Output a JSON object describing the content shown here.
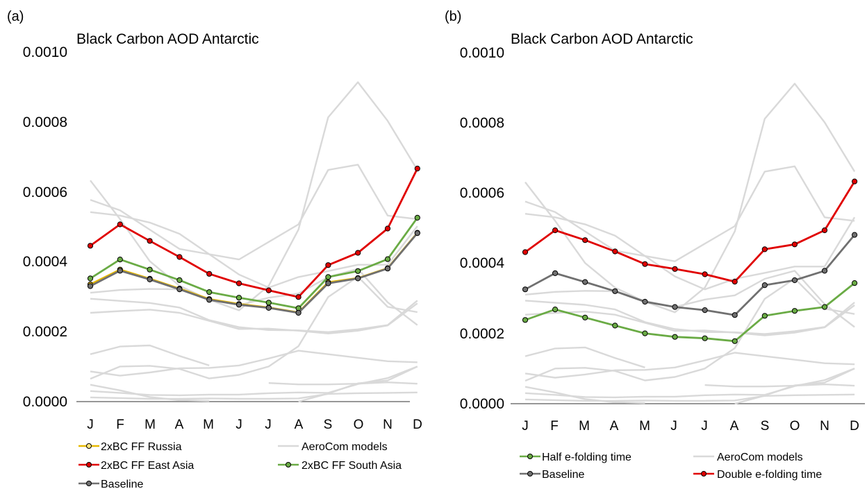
{
  "chart_data": [
    {
      "panel_label": "(a)",
      "type": "line",
      "title": "Black Carbon AOD Antarctic",
      "xlabel": "",
      "ylabel": "",
      "categories": [
        "J",
        "F",
        "M",
        "A",
        "M",
        "J",
        "J",
        "A",
        "S",
        "O",
        "N",
        "D"
      ],
      "ylim": [
        0,
        0.001
      ],
      "yticks": [
        "0.0000",
        "0.0002",
        "0.0004",
        "0.0006",
        "0.0008",
        "0.0010"
      ],
      "grid": false,
      "legend": "bottom",
      "legend_label": "AeroCom models",
      "background_color": "#d9d9d9",
      "background_series": [
        [
          0.00063,
          0.00052,
          0.0004,
          0.00033,
          0.00029,
          0.00026,
          0.00033,
          0.00049,
          0.00081,
          0.00091,
          0.0008,
          0.00066
        ],
        [
          0.000575,
          0.000545,
          0.00049,
          0.000435,
          0.00042,
          0.000405,
          0.000455,
          0.000505,
          0.00066,
          0.000675,
          0.00053,
          0.00052
        ],
        [
          0.00054,
          0.00053,
          0.00051,
          0.000478,
          0.00042,
          0.000362,
          0.000325,
          0.000355,
          0.000372,
          0.00039,
          0.00039,
          0.0005
        ],
        [
          0.00031,
          0.000318,
          0.000321,
          0.00032,
          0.000292,
          0.000275,
          0.000296,
          0.000308,
          0.000355,
          0.000378,
          0.000283,
          0.000218
        ],
        [
          0.000293,
          0.000287,
          0.000281,
          0.000268,
          0.000232,
          0.000212,
          0.000204,
          0.000203,
          0.000198,
          0.000206,
          0.000218,
          0.000288
        ],
        [
          0.000253,
          0.000258,
          0.000262,
          0.000253,
          0.00023,
          0.000207,
          0.000208,
          0.000202,
          0.000194,
          0.000202,
          0.000217,
          0.00028
        ],
        [
          0.000135,
          0.000157,
          0.00016,
          0.00013,
          0.000103,
          null,
          null,
          null,
          null,
          null,
          null,
          null
        ],
        [
          8.6e-05,
          7.4e-05,
          8.3e-05,
          9.5e-05,
          9.6e-05,
          0.000103,
          0.000123,
          0.000145,
          0.000135,
          0.000125,
          0.000115,
          0.000112
        ],
        [
          6.5e-05,
          0.0001,
          0.000102,
          9.3e-05,
          6.6e-05,
          7.6e-05,
          0.0001,
          0.000158,
          0.000298,
          0.000356,
          0.00027,
          0.000255
        ],
        [
          4.8e-05,
          3.2e-05,
          1.3e-05,
          4e-06,
          2e-06,
          null,
          null,
          null,
          null,
          null,
          null,
          null
        ],
        [
          3e-05,
          2.5e-05,
          1.9e-05,
          1.8e-05,
          2e-05,
          2e-05,
          2.4e-05,
          2.6e-05,
          2.5e-05,
          5e-05,
          6.7e-05,
          0.0001
        ],
        [
          1.2e-05,
          1e-05,
          8e-06,
          8e-06,
          9e-06,
          8e-06,
          8e-06,
          9e-06,
          2.2e-05,
          2.4e-05,
          2.5e-05,
          2.6e-05
        ],
        [
          null,
          null,
          null,
          null,
          null,
          null,
          5.3e-05,
          4.9e-05,
          4.9e-05,
          5.1e-05,
          5.5e-05,
          5.1e-05
        ],
        [
          null,
          null,
          null,
          null,
          null,
          null,
          null,
          0.0,
          2.3e-05,
          5.2e-05,
          6e-05,
          0.0001
        ]
      ],
      "series": [
        {
          "name": "2xBC FF Russia",
          "color": "#e6b800",
          "values": [
            0.000334,
            0.000376,
            0.00035,
            0.000322,
            0.000292,
            0.000278,
            0.000268,
            0.000254,
            0.00034,
            0.000352,
            0.00038,
            0.000481
          ]
        },
        {
          "name": "2xBC FF East Asia",
          "color": "#e00000",
          "values": [
            0.000444,
            0.000505,
            0.000458,
            0.000412,
            0.000364,
            0.000337,
            0.000317,
            0.000298,
            0.000389,
            0.000424,
            0.000493,
            0.000664
          ]
        },
        {
          "name": "2xBC FF South Asia",
          "color": "#6aab45",
          "values": [
            0.000351,
            0.000405,
            0.000376,
            0.000346,
            0.000312,
            0.000296,
            0.000282,
            0.000266,
            0.000355,
            0.000372,
            0.000406,
            0.000524
          ]
        },
        {
          "name": "Baseline",
          "color": "#707070",
          "values": [
            0.000329,
            0.000373,
            0.000348,
            0.00032,
            0.00029,
            0.000276,
            0.000267,
            0.000253,
            0.000337,
            0.000351,
            0.000379,
            0.00048
          ]
        }
      ],
      "legend_entries": [
        "2xBC FF Russia",
        "AeroCom models",
        "2xBC FF East Asia",
        "2xBC FF South Asia",
        "Baseline"
      ]
    },
    {
      "panel_label": "(b)",
      "type": "line",
      "title": "Black Carbon AOD Antarctic",
      "xlabel": "",
      "ylabel": "",
      "categories": [
        "J",
        "F",
        "M",
        "A",
        "M",
        "J",
        "J",
        "A",
        "S",
        "O",
        "N",
        "D"
      ],
      "ylim": [
        0,
        0.001
      ],
      "yticks": [
        "0.0000",
        "0.0002",
        "0.0004",
        "0.0006",
        "0.0008",
        "0.0010"
      ],
      "grid": false,
      "legend": "bottom",
      "legend_label": "AeroCom models",
      "background_color": "#d9d9d9",
      "background_series": [
        [
          0.00063,
          0.00052,
          0.0004,
          0.00033,
          0.00029,
          0.00026,
          0.00033,
          0.00049,
          0.00081,
          0.00091,
          0.0008,
          0.00066
        ],
        [
          0.000575,
          0.000545,
          0.00049,
          0.000435,
          0.00042,
          0.000405,
          0.000455,
          0.000505,
          0.00066,
          0.000675,
          0.00053,
          0.00052
        ],
        [
          0.00054,
          0.00053,
          0.00051,
          0.000478,
          0.00042,
          0.000362,
          0.000325,
          0.000355,
          0.000372,
          0.00039,
          0.00039,
          0.00053
        ],
        [
          0.00031,
          0.000318,
          0.000321,
          0.00032,
          0.000292,
          0.000275,
          0.000296,
          0.000308,
          0.000355,
          0.000378,
          0.000283,
          0.000218
        ],
        [
          0.000293,
          0.000287,
          0.000281,
          0.000268,
          0.000232,
          0.000212,
          0.000204,
          0.000203,
          0.000198,
          0.000206,
          0.000218,
          0.000288
        ],
        [
          0.000253,
          0.000258,
          0.000262,
          0.000253,
          0.00023,
          0.000207,
          0.000208,
          0.000202,
          0.000194,
          0.000202,
          0.000217,
          0.00028
        ],
        [
          0.000135,
          0.000157,
          0.00016,
          0.00013,
          0.000103,
          null,
          null,
          null,
          null,
          null,
          null,
          null
        ],
        [
          8.6e-05,
          7.4e-05,
          8.3e-05,
          9.5e-05,
          9.6e-05,
          0.000103,
          0.000123,
          0.000145,
          0.000135,
          0.000125,
          0.000115,
          0.000112
        ],
        [
          6.5e-05,
          0.0001,
          0.000102,
          9.3e-05,
          6.6e-05,
          7.6e-05,
          0.0001,
          0.000158,
          0.000298,
          0.000356,
          0.00027,
          0.000255
        ],
        [
          4.8e-05,
          3.2e-05,
          1.3e-05,
          4e-06,
          2e-06,
          null,
          null,
          null,
          null,
          null,
          null,
          null
        ],
        [
          3e-05,
          2.5e-05,
          1.9e-05,
          1.8e-05,
          2e-05,
          2e-05,
          2.4e-05,
          2.6e-05,
          2.5e-05,
          5e-05,
          6.7e-05,
          0.0001
        ],
        [
          1.2e-05,
          1e-05,
          8e-06,
          8e-06,
          9e-06,
          8e-06,
          8e-06,
          9e-06,
          2.2e-05,
          2.4e-05,
          2.5e-05,
          2.6e-05
        ],
        [
          null,
          null,
          null,
          null,
          null,
          null,
          5.3e-05,
          4.9e-05,
          4.9e-05,
          5.1e-05,
          5.5e-05,
          5.1e-05
        ],
        [
          null,
          null,
          null,
          null,
          null,
          null,
          null,
          0.0,
          2.3e-05,
          5.2e-05,
          6e-05,
          0.0001
        ]
      ],
      "series": [
        {
          "name": "Half e-folding time",
          "color": "#6aab45",
          "values": [
            0.000238,
            0.000268,
            0.000245,
            0.000222,
            0.0002,
            0.00019,
            0.000186,
            0.000178,
            0.00025,
            0.000264,
            0.000275,
            0.000343
          ]
        },
        {
          "name": "Baseline",
          "color": "#707070",
          "values": [
            0.000325,
            0.000371,
            0.000346,
            0.00032,
            0.00029,
            0.000275,
            0.000266,
            0.000252,
            0.000337,
            0.000351,
            0.000378,
            0.00048
          ]
        },
        {
          "name": "Double e-folding time",
          "color": "#e00000",
          "values": [
            0.000431,
            0.000493,
            0.000465,
            0.000433,
            0.000397,
            0.000383,
            0.000368,
            0.000347,
            0.000439,
            0.000453,
            0.000493,
            0.000632
          ]
        }
      ],
      "legend_entries": [
        "Half e-folding time",
        "AeroCom models",
        "Baseline",
        "Double e-folding time"
      ]
    }
  ]
}
